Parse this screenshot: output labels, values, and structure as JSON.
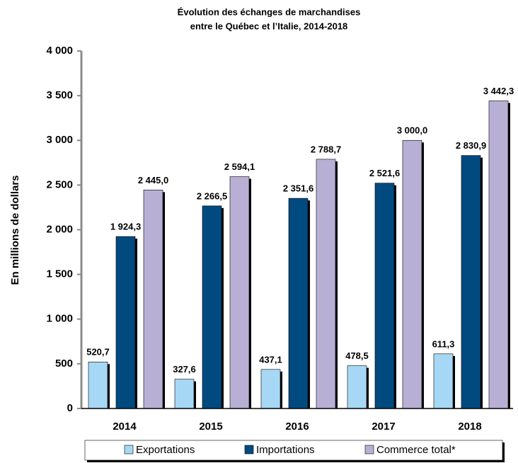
{
  "chart_data": {
    "type": "bar",
    "title_lines": [
      "Évolution des échanges de marchandises",
      "entre le Québec et l’Italie, 2014-2018"
    ],
    "y_label": "En millions de dollars",
    "categories": [
      "2014",
      "2015",
      "2016",
      "2017",
      "2018"
    ],
    "series": [
      {
        "name": "Exportations",
        "color": "#a6d8f5",
        "values": [
          520.7,
          327.6,
          437.1,
          478.5,
          611.3
        ],
        "value_labels": [
          "520,7",
          "327,6",
          "437,1",
          "478,5",
          "611,3"
        ]
      },
      {
        "name": "Importations",
        "color": "#004a80",
        "values": [
          1924.3,
          2266.5,
          2351.6,
          2521.6,
          2830.9
        ],
        "value_labels": [
          "1 924,3",
          "2 266,5",
          "2 351,6",
          "2 521,6",
          "2 830,9"
        ]
      },
      {
        "name": "Commerce total*",
        "color": "#b8b0d4",
        "values": [
          2445.0,
          2594.1,
          2788.7,
          3000.0,
          3442.3
        ],
        "value_labels": [
          "2 445,0",
          "2 594,1",
          "2 788,7",
          "3 000,0",
          "3 442,3"
        ]
      }
    ],
    "ylim": [
      0,
      4000
    ],
    "yticks": [
      0,
      500,
      {
        "value": 1000,
        "label": "1 000"
      },
      {
        "value": 1500,
        "label": "1 500"
      },
      {
        "value": 2000,
        "label": "2 000"
      },
      {
        "value": 2500,
        "label": "2 500"
      },
      {
        "value": 3000,
        "label": "3 000"
      },
      {
        "value": 3500,
        "label": "3 500"
      },
      {
        "value": 4000,
        "label": "4 000"
      }
    ],
    "grid": false,
    "legend": "bottom"
  }
}
